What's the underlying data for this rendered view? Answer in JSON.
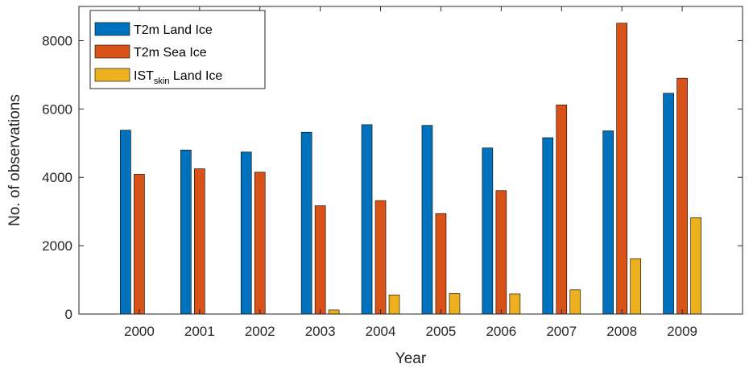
{
  "chart_data": {
    "type": "bar",
    "xlabel": "Year",
    "ylabel": "No. of observations",
    "categories": [
      "2000",
      "2001",
      "2002",
      "2003",
      "2004",
      "2005",
      "2006",
      "2007",
      "2008",
      "2009"
    ],
    "ylim": [
      0,
      9000
    ],
    "yticks": [
      0,
      2000,
      4000,
      6000,
      8000
    ],
    "ytick_labels": [
      "0",
      "2000",
      "4000",
      "6000",
      "8000"
    ],
    "grid": false,
    "legend_position": "top-left",
    "series": [
      {
        "legend_main": "T2m Land Ice",
        "legend_sub": "",
        "legend_rest": "",
        "color": "#0072BD",
        "values": [
          5380,
          4800,
          4740,
          5320,
          5540,
          5520,
          4860,
          5160,
          5360,
          6460
        ]
      },
      {
        "legend_main": "T2m Sea Ice",
        "legend_sub": "",
        "legend_rest": "",
        "color": "#D95319",
        "values": [
          4090,
          4250,
          4150,
          3170,
          3320,
          2940,
          3610,
          6120,
          8510,
          6900
        ]
      },
      {
        "legend_main": "IST",
        "legend_sub": "skin",
        "legend_rest": " Land Ice",
        "color": "#EDB120",
        "values": [
          0,
          0,
          0,
          120,
          560,
          600,
          590,
          710,
          1620,
          2820
        ]
      }
    ]
  }
}
